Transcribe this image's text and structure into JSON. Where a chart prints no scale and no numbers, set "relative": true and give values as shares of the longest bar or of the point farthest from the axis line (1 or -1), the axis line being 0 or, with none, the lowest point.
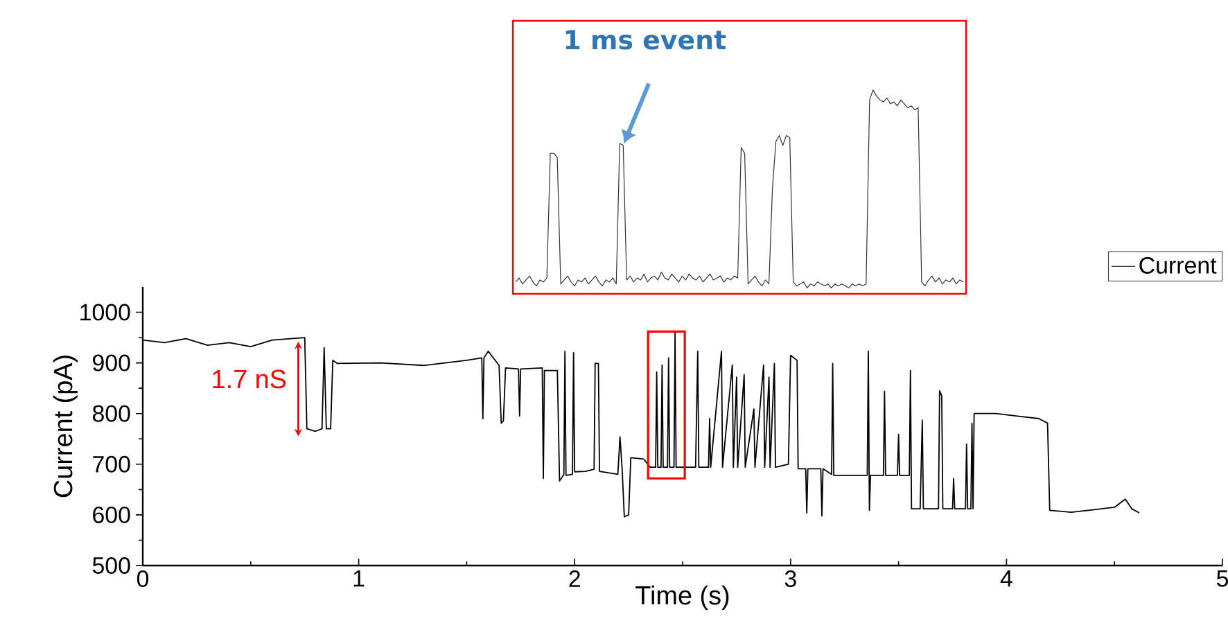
{
  "chart_data": [
    {
      "type": "line",
      "xlabel": "Time (s)",
      "ylabel": "Current (pA)",
      "xlim": [
        0,
        5
      ],
      "xticks": [
        0,
        1,
        2,
        3,
        4,
        5
      ],
      "ylim": [
        500,
        1050
      ],
      "yticks": [
        500,
        600,
        700,
        800,
        900,
        1000
      ],
      "legend": "top right",
      "annotations": [
        "1.7 nS"
      ],
      "x": [
        0,
        0.1,
        0.2,
        0.3,
        0.4,
        0.5,
        0.6,
        0.75,
        0.76,
        0.8,
        0.83,
        0.84,
        0.85,
        0.87,
        0.88,
        0.9,
        1.1,
        1.3,
        1.5,
        1.57,
        1.575,
        1.58,
        1.6,
        1.65,
        1.66,
        1.67,
        1.68,
        1.74,
        1.745,
        1.75,
        1.85,
        1.855,
        1.86,
        1.92,
        1.93,
        1.95,
        1.955,
        1.96,
        1.99,
        1.995,
        2.0,
        2.05,
        2.09,
        2.095,
        2.11,
        2.115,
        2.2,
        2.21,
        2.22,
        2.23,
        2.25,
        2.26,
        2.32,
        2.35,
        2.375,
        2.38,
        2.385,
        2.4,
        2.405,
        2.41,
        2.43,
        2.435,
        2.44,
        2.46,
        2.465,
        2.47,
        2.56,
        2.57,
        2.575,
        2.62,
        2.625,
        2.63,
        2.68,
        2.685,
        2.73,
        2.735,
        2.75,
        2.755,
        2.785,
        2.79,
        2.83,
        2.835,
        2.875,
        2.88,
        2.9,
        2.905,
        2.925,
        2.93,
        2.99,
        3.0,
        3.03,
        3.035,
        3.07,
        3.075,
        3.08,
        3.14,
        3.145,
        3.15,
        3.19,
        3.195,
        3.2,
        3.355,
        3.36,
        3.365,
        3.37,
        3.43,
        3.435,
        3.44,
        3.495,
        3.5,
        3.505,
        3.55,
        3.555,
        3.56,
        3.6,
        3.61,
        3.615,
        3.685,
        3.69,
        3.7,
        3.705,
        3.75,
        3.755,
        3.76,
        3.81,
        3.815,
        3.82,
        3.835,
        3.84,
        3.845,
        3.85,
        3.95,
        4.05,
        4.15,
        4.19,
        4.2,
        4.3,
        4.4,
        4.5,
        4.55,
        4.58,
        4.615
      ],
      "series": [
        {
          "name": "Current",
          "color": "#000000",
          "values": [
            945,
            940,
            948,
            935,
            940,
            932,
            945,
            950,
            770,
            765,
            770,
            930,
            770,
            770,
            905,
            899,
            900,
            895,
            905,
            910,
            790,
            910,
            923,
            895,
            781,
            785,
            890,
            888,
            795,
            888,
            890,
            672,
            885,
            885,
            667,
            680,
            923,
            678,
            680,
            920,
            685,
            686,
            690,
            899,
            899,
            686,
            680,
            754,
            690,
            596,
            600,
            713,
            710,
            694,
            694,
            882,
            694,
            694,
            896,
            694,
            694,
            910,
            694,
            694,
            960,
            694,
            694,
            923,
            694,
            694,
            790,
            694,
            923,
            694,
            896,
            694,
            872,
            694,
            877,
            694,
            809,
            694,
            896,
            694,
            872,
            694,
            899,
            694,
            700,
            915,
            905,
            691,
            691,
            604,
            691,
            691,
            598,
            691,
            680,
            899,
            678,
            678,
            923,
            609,
            678,
            678,
            844,
            678,
            678,
            759,
            678,
            678,
            885,
            612,
            612,
            787,
            612,
            612,
            845,
            835,
            612,
            612,
            672,
            612,
            612,
            740,
            612,
            612,
            781,
            612,
            800,
            800,
            795,
            790,
            781,
            609,
            605,
            610,
            615,
            631,
            612,
            604
          ]
        }
      ]
    },
    {
      "type": "line",
      "relative": true,
      "annotations": [
        "1 ms event"
      ],
      "categories": [
        null,
        null,
        null,
        null,
        null,
        null,
        null,
        null,
        null,
        null,
        null,
        null,
        null,
        null,
        null,
        null,
        null,
        null,
        null,
        null,
        null,
        null,
        null,
        null,
        null,
        null,
        null,
        null,
        null,
        null,
        null,
        null,
        null,
        null,
        null,
        null,
        null,
        null,
        null,
        null,
        null,
        null,
        null,
        null,
        null,
        null,
        null,
        null,
        null,
        null,
        null,
        null,
        null,
        null,
        null,
        null,
        null,
        null,
        null,
        null,
        null,
        null,
        null,
        null,
        null,
        null,
        null,
        null,
        null,
        null,
        null,
        null,
        null,
        null,
        null,
        null,
        null,
        null,
        null,
        null,
        null,
        null,
        null,
        null,
        null,
        null,
        null,
        null,
        null,
        null,
        null,
        null,
        null,
        null,
        null,
        null,
        null,
        null,
        null,
        null,
        null,
        null,
        null,
        null,
        null,
        null,
        null,
        null,
        null,
        null,
        null,
        null,
        null,
        null,
        null,
        null,
        null,
        null,
        null,
        null,
        null,
        null,
        null,
        null,
        null,
        null,
        null,
        null,
        null,
        null
      ],
      "series": [
        {
          "color": "#333333",
          "values": [
            0.03,
            0.05,
            0.02,
            0.04,
            0.06,
            0.03,
            0.01,
            0.04,
            0.03,
            0.05,
            0.68,
            0.68,
            0.66,
            0.02,
            0.04,
            0.06,
            0.03,
            0.01,
            0.04,
            0.03,
            0.05,
            0.02,
            0.04,
            0.06,
            0.03,
            0.01,
            0.04,
            0.03,
            0.05,
            0.02,
            0.73,
            0.72,
            0.04,
            0.06,
            0.03,
            0.05,
            0.04,
            0.07,
            0.03,
            0.05,
            0.06,
            0.04,
            0.08,
            0.05,
            0.04,
            0.07,
            0.05,
            0.03,
            0.06,
            0.04,
            0.07,
            0.05,
            0.04,
            0.06,
            0.03,
            0.05,
            0.07,
            0.04,
            0.05,
            0.06,
            0.03,
            0.05,
            0.04,
            0.06,
            0.05,
            0.71,
            0.68,
            0.02,
            0.04,
            0.06,
            0.03,
            0.01,
            0.04,
            0.02,
            0.5,
            0.74,
            0.77,
            0.72,
            0.77,
            0.76,
            0.03,
            0.01,
            0.02,
            0.03,
            0.0,
            0.02,
            0.01,
            0.03,
            0.02,
            0.01,
            0.02,
            0.0,
            0.02,
            0.01,
            0.02,
            0.01,
            0.0,
            0.02,
            0.01,
            0.02,
            0.01,
            0.02,
            0.95,
            1.0,
            0.97,
            0.95,
            0.94,
            0.96,
            0.93,
            0.94,
            0.92,
            0.95,
            0.93,
            0.91,
            0.92,
            0.9,
            0.91,
            0.03,
            0.01,
            0.04,
            0.06,
            0.03,
            0.05,
            0.02,
            0.04,
            0.03,
            0.05,
            0.02,
            0.04,
            0.03
          ]
        }
      ]
    }
  ]
}
